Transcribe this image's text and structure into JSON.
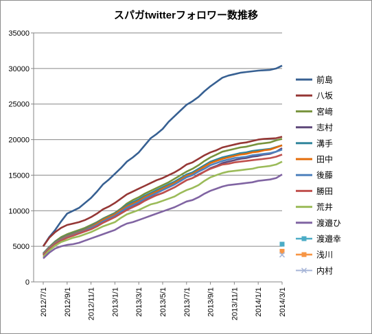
{
  "chart_data": {
    "type": "line",
    "title": "スパガtwitterフォロワー数推移",
    "xlabel": "",
    "ylabel": "",
    "ylim": [
      0,
      35000
    ],
    "y_ticks": [
      0,
      5000,
      10000,
      15000,
      20000,
      25000,
      30000,
      35000
    ],
    "x_tick_labels": [
      "2012/7/1",
      "2012/9/1",
      "2012/11/1",
      "2013/1/1",
      "2013/3/1",
      "2013/5/1",
      "2013/7/1",
      "2013/9/1",
      "2013/11/1",
      "2014/1/1",
      "2014/3/1"
    ],
    "grid": "horizontal",
    "legend_position": "right",
    "x": [
      "2012/7/1",
      "2012/7/16",
      "2012/8/1",
      "2012/8/16",
      "2012/9/1",
      "2012/9/16",
      "2012/10/1",
      "2012/10/16",
      "2012/11/1",
      "2012/11/16",
      "2012/12/1",
      "2012/12/16",
      "2013/1/1",
      "2013/1/16",
      "2013/2/1",
      "2013/2/16",
      "2013/3/1",
      "2013/3/16",
      "2013/4/1",
      "2013/4/16",
      "2013/5/1",
      "2013/5/16",
      "2013/6/1",
      "2013/6/16",
      "2013/7/1",
      "2013/7/16",
      "2013/8/1",
      "2013/8/16",
      "2013/9/1",
      "2013/9/16",
      "2013/10/1",
      "2013/10/16",
      "2013/11/1",
      "2013/11/16",
      "2013/12/1",
      "2013/12/16",
      "2014/1/1",
      "2014/1/16",
      "2014/2/1",
      "2014/2/16",
      "2014/3/1"
    ],
    "series": [
      {
        "name": "前島",
        "color": "#376092",
        "values": [
          5000,
          6300,
          7300,
          8500,
          9600,
          10000,
          10400,
          11100,
          11800,
          12700,
          13700,
          14400,
          15200,
          16000,
          16900,
          17500,
          18200,
          19200,
          20200,
          20800,
          21500,
          22500,
          23300,
          24100,
          24900,
          25400,
          26000,
          26800,
          27500,
          28100,
          28700,
          29000,
          29200,
          29400,
          29500,
          29600,
          29700,
          29750,
          29800,
          30000,
          30400
        ]
      },
      {
        "name": "八坂",
        "color": "#953735",
        "values": [
          5000,
          6200,
          7000,
          7600,
          8000,
          8200,
          8400,
          8700,
          9100,
          9600,
          10200,
          10600,
          11100,
          11700,
          12300,
          12700,
          13100,
          13500,
          13900,
          14300,
          14600,
          15000,
          15400,
          15900,
          16500,
          16800,
          17300,
          17800,
          18200,
          18500,
          18900,
          19100,
          19300,
          19500,
          19600,
          19800,
          20000,
          20100,
          20150,
          20200,
          20400
        ]
      },
      {
        "name": "宮﨑",
        "color": "#77933c",
        "values": [
          4000,
          4900,
          5700,
          6300,
          6700,
          7000,
          7300,
          7600,
          8000,
          8400,
          8900,
          9300,
          9700,
          10300,
          11000,
          11500,
          11900,
          12400,
          12800,
          13200,
          13600,
          14000,
          14500,
          15000,
          15500,
          15900,
          16400,
          17000,
          17500,
          17900,
          18300,
          18500,
          18700,
          18900,
          19000,
          19200,
          19400,
          19500,
          19600,
          19900,
          20100
        ]
      },
      {
        "name": "志村",
        "color": "#604a7b",
        "values": [
          3900,
          4800,
          5500,
          6000,
          6400,
          6700,
          6900,
          7200,
          7600,
          8000,
          8400,
          8800,
          9200,
          9700,
          10300,
          10700,
          11000,
          11500,
          11900,
          12200,
          12500,
          12900,
          13300,
          13800,
          14300,
          14600,
          15100,
          15500,
          16000,
          16300,
          16700,
          16900,
          17100,
          17300,
          17400,
          17600,
          17700,
          17900,
          18000,
          18300,
          18800
        ]
      },
      {
        "name": "溝手",
        "color": "#31859c",
        "values": [
          4000,
          4900,
          5600,
          6100,
          6500,
          6800,
          7100,
          7400,
          7800,
          8300,
          8800,
          9200,
          9600,
          10200,
          10800,
          11200,
          11600,
          12100,
          12500,
          12900,
          13300,
          13700,
          14100,
          14600,
          15100,
          15400,
          15900,
          16400,
          16900,
          17200,
          17500,
          17700,
          17900,
          18100,
          18200,
          18400,
          18500,
          18600,
          18700,
          18950,
          19200
        ]
      },
      {
        "name": "田中",
        "color": "#e46c0a",
        "values": [
          3900,
          4800,
          5500,
          6000,
          6400,
          6700,
          7000,
          7300,
          7700,
          8200,
          8700,
          9100,
          9500,
          10100,
          10600,
          11000,
          11400,
          11900,
          12300,
          12700,
          13100,
          13500,
          13900,
          14400,
          14900,
          15200,
          15700,
          16200,
          16700,
          17000,
          17300,
          17500,
          17700,
          17900,
          18000,
          18200,
          18300,
          18500,
          18600,
          18900,
          19200
        ]
      },
      {
        "name": "後藤",
        "color": "#4f81bd",
        "values": [
          3800,
          4700,
          5400,
          5900,
          6300,
          6600,
          6900,
          7200,
          7600,
          8000,
          8500,
          8900,
          9300,
          9900,
          10400,
          10800,
          11200,
          11700,
          12100,
          12500,
          12900,
          13300,
          13700,
          14200,
          14700,
          15000,
          15500,
          15900,
          16400,
          16700,
          17000,
          17200,
          17400,
          17500,
          17600,
          17800,
          17900,
          18000,
          18100,
          18300,
          18600
        ]
      },
      {
        "name": "勝田",
        "color": "#c0504d",
        "values": [
          3700,
          4600,
          5300,
          5800,
          6200,
          6500,
          6800,
          7100,
          7400,
          7800,
          8300,
          8700,
          9100,
          9600,
          10100,
          10500,
          10900,
          11400,
          11800,
          12200,
          12500,
          12900,
          13300,
          13800,
          14300,
          14600,
          15000,
          15500,
          15900,
          16200,
          16500,
          16600,
          16800,
          16900,
          17000,
          17100,
          17200,
          17300,
          17400,
          17600,
          17900
        ]
      },
      {
        "name": "荒井",
        "color": "#9bbb59",
        "values": [
          3500,
          4400,
          5100,
          5600,
          5900,
          6200,
          6400,
          6700,
          7000,
          7400,
          7800,
          8100,
          8400,
          9000,
          9500,
          9800,
          10100,
          10500,
          10900,
          11100,
          11400,
          11700,
          12000,
          12500,
          12900,
          13200,
          13600,
          14200,
          14700,
          15000,
          15300,
          15500,
          15600,
          15700,
          15800,
          15900,
          16100,
          16200,
          16300,
          16500,
          16900
        ]
      },
      {
        "name": "渡邉ひ",
        "color": "#8064a2",
        "values": [
          3300,
          4100,
          4700,
          5000,
          5200,
          5300,
          5500,
          5800,
          6100,
          6400,
          6700,
          7000,
          7300,
          7800,
          8200,
          8400,
          8700,
          9000,
          9300,
          9600,
          9900,
          10200,
          10500,
          10900,
          11300,
          11500,
          11900,
          12400,
          12800,
          13100,
          13400,
          13600,
          13700,
          13800,
          13900,
          14000,
          14200,
          14300,
          14400,
          14600,
          15100
        ]
      },
      {
        "name": "渡邉幸",
        "color": "#4bacc6",
        "marker": "square",
        "values": [
          null,
          null,
          null,
          null,
          null,
          null,
          null,
          null,
          null,
          null,
          null,
          null,
          null,
          null,
          null,
          null,
          null,
          null,
          null,
          null,
          null,
          null,
          null,
          null,
          null,
          null,
          null,
          null,
          null,
          null,
          null,
          null,
          null,
          null,
          null,
          null,
          null,
          null,
          null,
          null,
          5300
        ]
      },
      {
        "name": "浅川",
        "color": "#f79646",
        "marker": "square",
        "values": [
          null,
          null,
          null,
          null,
          null,
          null,
          null,
          null,
          null,
          null,
          null,
          null,
          null,
          null,
          null,
          null,
          null,
          null,
          null,
          null,
          null,
          null,
          null,
          null,
          null,
          null,
          null,
          null,
          null,
          null,
          null,
          null,
          null,
          null,
          null,
          null,
          null,
          null,
          null,
          null,
          4300
        ]
      },
      {
        "name": "内村",
        "color": "#a6b5d7",
        "marker": "x",
        "values": [
          null,
          null,
          null,
          null,
          null,
          null,
          null,
          null,
          null,
          null,
          null,
          null,
          null,
          null,
          null,
          null,
          null,
          null,
          null,
          null,
          null,
          null,
          null,
          null,
          null,
          null,
          null,
          null,
          null,
          null,
          null,
          null,
          null,
          null,
          null,
          null,
          null,
          null,
          null,
          null,
          3800
        ]
      }
    ]
  }
}
